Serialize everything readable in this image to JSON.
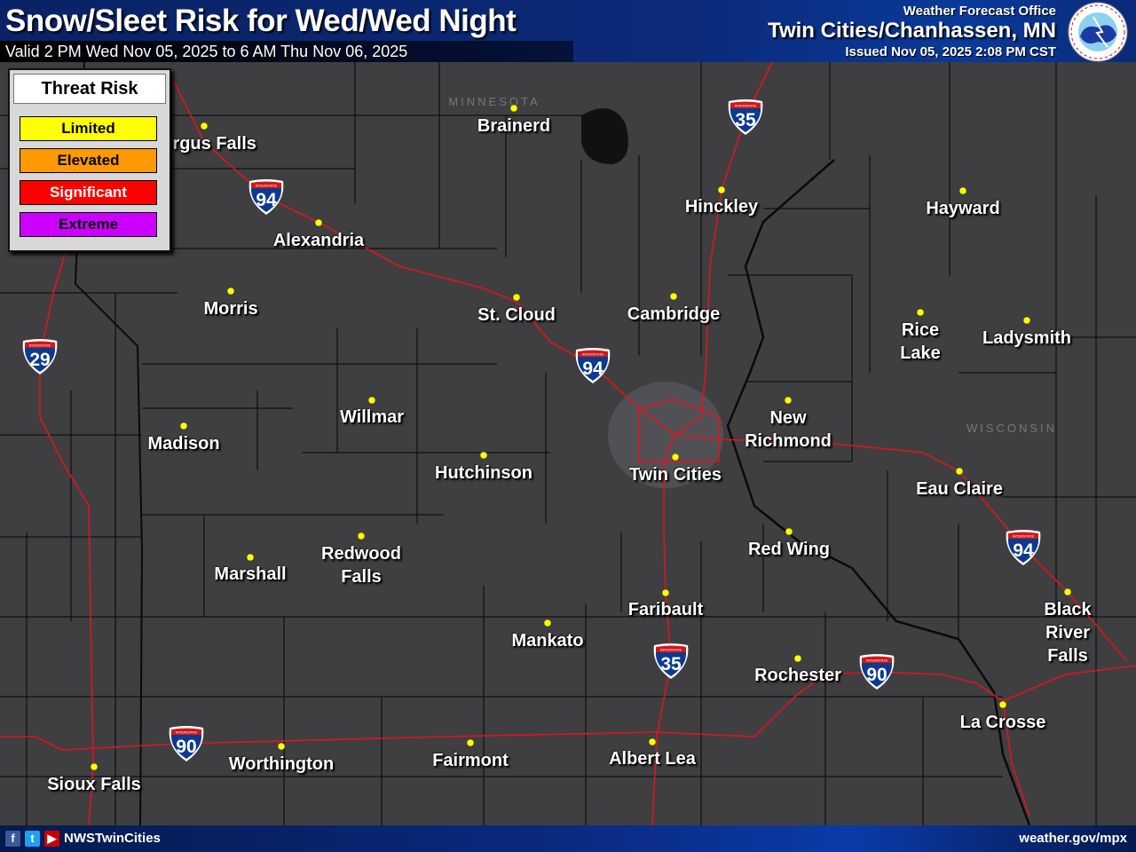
{
  "header": {
    "title": "Snow/Sleet Risk for Wed/Wed Night",
    "valid": "Valid 2 PM Wed Nov 05, 2025 to 6 AM Thu Nov 06, 2025",
    "office_label": "Weather Forecast Office",
    "office": "Twin Cities/Chanhassen, MN",
    "issued": "Issued Nov 05, 2025 2:08 PM CST",
    "logo_text": "NATIONAL WEATHER SERVICE"
  },
  "legend": {
    "title": "Threat Risk",
    "items": [
      {
        "label": "Limited",
        "color": "#ffff00",
        "text": "#000000"
      },
      {
        "label": "Elevated",
        "color": "#ff9900",
        "text": "#000000"
      },
      {
        "label": "Significant",
        "color": "#ff0000",
        "text": "#ffffff"
      },
      {
        "label": "Extreme",
        "color": "#cc00ff",
        "text": "#000000"
      }
    ]
  },
  "map": {
    "states": [
      "MINNESOTA",
      "WISCONSIN"
    ],
    "road_color": "#e0141e",
    "city_dot_color": "#ffff00",
    "cities": [
      "Fergus Falls",
      "Brainerd",
      "Hinckley",
      "Hayward",
      "Alexandria",
      "Morris",
      "St. Cloud",
      "Cambridge",
      "Rice\nLake",
      "Ladysmith",
      "Willmar",
      "Madison",
      "New\nRichmond",
      "Hutchinson",
      "Twin Cities",
      "Eau Claire",
      "Redwood\nFalls",
      "Marshall",
      "Red Wing",
      "Faribault",
      "Black\nRiver\nFalls",
      "Mankato",
      "Rochester",
      "La Crosse",
      "Worthington",
      "Fairmont",
      "Albert Lea",
      "Sioux Falls"
    ],
    "shields": [
      "35",
      "94",
      "29",
      "94",
      "94",
      "35",
      "90",
      "90"
    ],
    "shield_header": "INTERSTATE"
  },
  "footer": {
    "social_icons": [
      "facebook-icon",
      "twitter-icon",
      "youtube-icon"
    ],
    "handle": "NWSTwinCities",
    "url": "weather.gov/mpx"
  }
}
